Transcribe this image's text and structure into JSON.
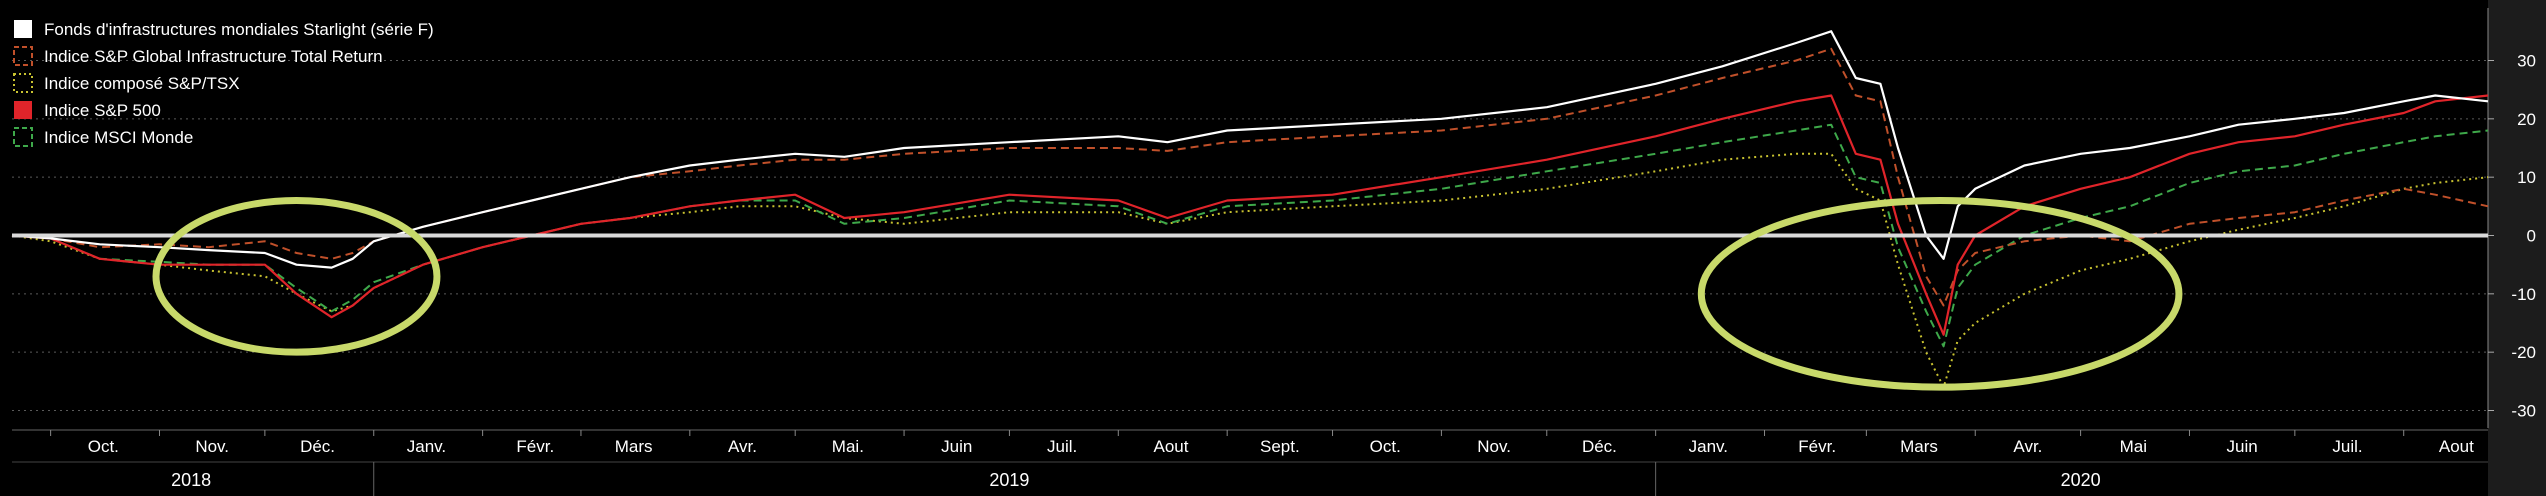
{
  "colors": {
    "background": "#000000",
    "axis_panel": "#1c1c1c",
    "grid": "#5a5a5a",
    "zero_line": "#d9d9d9",
    "highlight_circle": "#c8d96a",
    "text": "#ffffff"
  },
  "chart_data": {
    "type": "line",
    "title": "",
    "xlabel": "",
    "ylabel": "",
    "grid": "horizontal dotted",
    "legend_placement": "top-left",
    "ylim": [
      -33,
      39
    ],
    "yticks": [
      -30,
      -20,
      -10,
      0,
      10,
      20,
      30
    ],
    "x_range": [
      "2018-09-20",
      "2020-08-25"
    ],
    "month_ticks": [
      {
        "label": "Oct.",
        "date": "2018-10-01"
      },
      {
        "label": "Nov.",
        "date": "2018-11-01"
      },
      {
        "label": "Déc.",
        "date": "2018-12-01"
      },
      {
        "label": "Janv.",
        "date": "2019-01-01"
      },
      {
        "label": "Févr.",
        "date": "2019-02-01"
      },
      {
        "label": "Mars",
        "date": "2019-03-01"
      },
      {
        "label": "Avr.",
        "date": "2019-04-01"
      },
      {
        "label": "Mai.",
        "date": "2019-05-01"
      },
      {
        "label": "Juin",
        "date": "2019-06-01"
      },
      {
        "label": "Juil.",
        "date": "2019-07-01"
      },
      {
        "label": "Aout",
        "date": "2019-08-01"
      },
      {
        "label": "Sept.",
        "date": "2019-09-01"
      },
      {
        "label": "Oct.",
        "date": "2019-10-01"
      },
      {
        "label": "Nov.",
        "date": "2019-11-01"
      },
      {
        "label": "Déc.",
        "date": "2019-12-01"
      },
      {
        "label": "Janv.",
        "date": "2020-01-01"
      },
      {
        "label": "Févr.",
        "date": "2020-02-01"
      },
      {
        "label": "Mars",
        "date": "2020-03-01"
      },
      {
        "label": "Avr.",
        "date": "2020-04-01"
      },
      {
        "label": "Mai",
        "date": "2020-05-01"
      },
      {
        "label": "Juin",
        "date": "2020-06-01"
      },
      {
        "label": "Juil.",
        "date": "2020-07-01"
      },
      {
        "label": "Aout",
        "date": "2020-08-01"
      }
    ],
    "year_labels": [
      {
        "label": "2018",
        "date": "2018-11-10"
      },
      {
        "label": "2019",
        "date": "2019-07-01"
      },
      {
        "label": "2020",
        "date": "2020-05-01"
      }
    ],
    "year_separators": [
      "2019-01-01",
      "2020-01-01"
    ],
    "highlight_circles": [
      {
        "center_date": "2018-12-10",
        "center_value": -7,
        "radius_days": 40,
        "radius_value": 13
      },
      {
        "center_date": "2020-03-22",
        "center_value": -10,
        "radius_days": 68,
        "radius_value": 16
      }
    ],
    "series": [
      {
        "name": "Fonds d'infrastructures mondiales Starlight (série F)",
        "color": "#ffffff",
        "style": "solid",
        "points": [
          [
            "2018-09-20",
            0
          ],
          [
            "2018-10-01",
            -0.5
          ],
          [
            "2018-10-15",
            -1.5
          ],
          [
            "2018-11-01",
            -2
          ],
          [
            "2018-11-15",
            -2.5
          ],
          [
            "2018-12-01",
            -3
          ],
          [
            "2018-12-10",
            -5
          ],
          [
            "2018-12-20",
            -5.5
          ],
          [
            "2018-12-26",
            -4
          ],
          [
            "2019-01-01",
            -1
          ],
          [
            "2019-01-15",
            1.5
          ],
          [
            "2019-02-01",
            4
          ],
          [
            "2019-02-15",
            6
          ],
          [
            "2019-03-01",
            8
          ],
          [
            "2019-03-15",
            10
          ],
          [
            "2019-04-01",
            12
          ],
          [
            "2019-04-15",
            13
          ],
          [
            "2019-05-01",
            14
          ],
          [
            "2019-05-15",
            13.5
          ],
          [
            "2019-06-01",
            15
          ],
          [
            "2019-07-01",
            16
          ],
          [
            "2019-08-01",
            17
          ],
          [
            "2019-08-15",
            16
          ],
          [
            "2019-09-01",
            18
          ],
          [
            "2019-10-01",
            19
          ],
          [
            "2019-11-01",
            20
          ],
          [
            "2019-12-01",
            22
          ],
          [
            "2020-01-01",
            26
          ],
          [
            "2020-01-20",
            29
          ],
          [
            "2020-02-10",
            33
          ],
          [
            "2020-02-20",
            35
          ],
          [
            "2020-02-27",
            27
          ],
          [
            "2020-03-05",
            26
          ],
          [
            "2020-03-10",
            15
          ],
          [
            "2020-03-18",
            0
          ],
          [
            "2020-03-23",
            -4
          ],
          [
            "2020-03-27",
            5
          ],
          [
            "2020-04-01",
            8
          ],
          [
            "2020-04-15",
            12
          ],
          [
            "2020-05-01",
            14
          ],
          [
            "2020-05-15",
            15
          ],
          [
            "2020-06-01",
            17
          ],
          [
            "2020-06-15",
            19
          ],
          [
            "2020-07-01",
            20
          ],
          [
            "2020-07-15",
            21
          ],
          [
            "2020-08-01",
            23
          ],
          [
            "2020-08-10",
            24
          ],
          [
            "2020-08-25",
            23
          ]
        ]
      },
      {
        "name": "Indice S&P Global Infrastructure Total Return",
        "color": "#c0502a",
        "style": "dashed",
        "points": [
          [
            "2018-09-20",
            0
          ],
          [
            "2018-10-01",
            -0.5
          ],
          [
            "2018-10-15",
            -2
          ],
          [
            "2018-11-01",
            -1.5
          ],
          [
            "2018-11-15",
            -2
          ],
          [
            "2018-12-01",
            -1
          ],
          [
            "2018-12-10",
            -3
          ],
          [
            "2018-12-20",
            -4
          ],
          [
            "2018-12-26",
            -3
          ],
          [
            "2019-01-01",
            -1
          ],
          [
            "2019-01-15",
            1.5
          ],
          [
            "2019-02-01",
            4
          ],
          [
            "2019-02-15",
            6
          ],
          [
            "2019-03-01",
            8
          ],
          [
            "2019-03-15",
            10
          ],
          [
            "2019-04-01",
            11
          ],
          [
            "2019-04-15",
            12
          ],
          [
            "2019-05-01",
            13
          ],
          [
            "2019-05-15",
            13
          ],
          [
            "2019-06-01",
            14
          ],
          [
            "2019-07-01",
            15
          ],
          [
            "2019-08-01",
            15
          ],
          [
            "2019-08-15",
            14.5
          ],
          [
            "2019-09-01",
            16
          ],
          [
            "2019-10-01",
            17
          ],
          [
            "2019-11-01",
            18
          ],
          [
            "2019-12-01",
            20
          ],
          [
            "2020-01-01",
            24
          ],
          [
            "2020-01-20",
            27
          ],
          [
            "2020-02-10",
            30
          ],
          [
            "2020-02-20",
            32
          ],
          [
            "2020-02-27",
            24
          ],
          [
            "2020-03-05",
            23
          ],
          [
            "2020-03-10",
            10
          ],
          [
            "2020-03-18",
            -7
          ],
          [
            "2020-03-23",
            -12
          ],
          [
            "2020-03-27",
            -6
          ],
          [
            "2020-04-01",
            -3
          ],
          [
            "2020-04-15",
            -1
          ],
          [
            "2020-05-01",
            0
          ],
          [
            "2020-05-15",
            -1
          ],
          [
            "2020-06-01",
            2
          ],
          [
            "2020-06-15",
            3
          ],
          [
            "2020-07-01",
            4
          ],
          [
            "2020-07-15",
            6
          ],
          [
            "2020-08-01",
            8
          ],
          [
            "2020-08-10",
            7
          ],
          [
            "2020-08-25",
            5
          ]
        ]
      },
      {
        "name": "Indice composé S&P/TSX",
        "color": "#c8c230",
        "style": "dotted",
        "points": [
          [
            "2018-09-20",
            0
          ],
          [
            "2018-10-01",
            -1
          ],
          [
            "2018-10-15",
            -4
          ],
          [
            "2018-11-01",
            -5
          ],
          [
            "2018-11-15",
            -6
          ],
          [
            "2018-12-01",
            -7
          ],
          [
            "2018-12-10",
            -10
          ],
          [
            "2018-12-20",
            -13
          ],
          [
            "2018-12-26",
            -12
          ],
          [
            "2019-01-01",
            -9
          ],
          [
            "2019-01-15",
            -5
          ],
          [
            "2019-02-01",
            -2
          ],
          [
            "2019-02-15",
            0
          ],
          [
            "2019-03-01",
            2
          ],
          [
            "2019-03-15",
            3
          ],
          [
            "2019-04-01",
            4
          ],
          [
            "2019-04-15",
            5
          ],
          [
            "2019-05-01",
            5
          ],
          [
            "2019-05-15",
            3
          ],
          [
            "2019-06-01",
            2
          ],
          [
            "2019-07-01",
            4
          ],
          [
            "2019-08-01",
            4
          ],
          [
            "2019-08-15",
            2
          ],
          [
            "2019-09-01",
            4
          ],
          [
            "2019-10-01",
            5
          ],
          [
            "2019-11-01",
            6
          ],
          [
            "2019-12-01",
            8
          ],
          [
            "2020-01-01",
            11
          ],
          [
            "2020-01-20",
            13
          ],
          [
            "2020-02-10",
            14
          ],
          [
            "2020-02-20",
            14
          ],
          [
            "2020-02-27",
            8
          ],
          [
            "2020-03-05",
            6
          ],
          [
            "2020-03-10",
            -5
          ],
          [
            "2020-03-18",
            -20
          ],
          [
            "2020-03-23",
            -26
          ],
          [
            "2020-03-27",
            -18
          ],
          [
            "2020-04-01",
            -15
          ],
          [
            "2020-04-15",
            -10
          ],
          [
            "2020-05-01",
            -6
          ],
          [
            "2020-05-15",
            -4
          ],
          [
            "2020-06-01",
            -1
          ],
          [
            "2020-06-15",
            1
          ],
          [
            "2020-07-01",
            3
          ],
          [
            "2020-07-15",
            5
          ],
          [
            "2020-08-01",
            8
          ],
          [
            "2020-08-10",
            9
          ],
          [
            "2020-08-25",
            10
          ]
        ]
      },
      {
        "name": "Indice S&P 500",
        "color": "#e0242a",
        "style": "solid",
        "points": [
          [
            "2018-09-20",
            0
          ],
          [
            "2018-10-01",
            -0.5
          ],
          [
            "2018-10-15",
            -4
          ],
          [
            "2018-11-01",
            -5
          ],
          [
            "2018-11-15",
            -5
          ],
          [
            "2018-12-01",
            -5
          ],
          [
            "2018-12-10",
            -10
          ],
          [
            "2018-12-20",
            -14
          ],
          [
            "2018-12-26",
            -12
          ],
          [
            "2019-01-01",
            -9
          ],
          [
            "2019-01-15",
            -5
          ],
          [
            "2019-02-01",
            -2
          ],
          [
            "2019-02-15",
            0
          ],
          [
            "2019-03-01",
            2
          ],
          [
            "2019-03-15",
            3
          ],
          [
            "2019-04-01",
            5
          ],
          [
            "2019-04-15",
            6
          ],
          [
            "2019-05-01",
            7
          ],
          [
            "2019-05-15",
            3
          ],
          [
            "2019-06-01",
            4
          ],
          [
            "2019-07-01",
            7
          ],
          [
            "2019-08-01",
            6
          ],
          [
            "2019-08-15",
            3
          ],
          [
            "2019-09-01",
            6
          ],
          [
            "2019-10-01",
            7
          ],
          [
            "2019-11-01",
            10
          ],
          [
            "2019-12-01",
            13
          ],
          [
            "2020-01-01",
            17
          ],
          [
            "2020-01-20",
            20
          ],
          [
            "2020-02-10",
            23
          ],
          [
            "2020-02-20",
            24
          ],
          [
            "2020-02-27",
            14
          ],
          [
            "2020-03-05",
            13
          ],
          [
            "2020-03-10",
            2
          ],
          [
            "2020-03-18",
            -10
          ],
          [
            "2020-03-23",
            -17
          ],
          [
            "2020-03-27",
            -5
          ],
          [
            "2020-04-01",
            0
          ],
          [
            "2020-04-15",
            5
          ],
          [
            "2020-05-01",
            8
          ],
          [
            "2020-05-15",
            10
          ],
          [
            "2020-06-01",
            14
          ],
          [
            "2020-06-15",
            16
          ],
          [
            "2020-07-01",
            17
          ],
          [
            "2020-07-15",
            19
          ],
          [
            "2020-08-01",
            21
          ],
          [
            "2020-08-10",
            23
          ],
          [
            "2020-08-25",
            24
          ]
        ]
      },
      {
        "name": "Indice MSCI Monde",
        "color": "#3ea84a",
        "style": "dashed",
        "points": [
          [
            "2018-09-20",
            0
          ],
          [
            "2018-10-01",
            -0.5
          ],
          [
            "2018-10-15",
            -4
          ],
          [
            "2018-11-01",
            -4.5
          ],
          [
            "2018-11-15",
            -5
          ],
          [
            "2018-12-01",
            -5
          ],
          [
            "2018-12-10",
            -9
          ],
          [
            "2018-12-20",
            -13
          ],
          [
            "2018-12-26",
            -11
          ],
          [
            "2019-01-01",
            -8
          ],
          [
            "2019-01-15",
            -5
          ],
          [
            "2019-02-01",
            -2
          ],
          [
            "2019-02-15",
            0
          ],
          [
            "2019-03-01",
            2
          ],
          [
            "2019-03-15",
            3
          ],
          [
            "2019-04-01",
            5
          ],
          [
            "2019-04-15",
            6
          ],
          [
            "2019-05-01",
            6
          ],
          [
            "2019-05-15",
            2
          ],
          [
            "2019-06-01",
            3
          ],
          [
            "2019-07-01",
            6
          ],
          [
            "2019-08-01",
            5
          ],
          [
            "2019-08-15",
            2
          ],
          [
            "2019-09-01",
            5
          ],
          [
            "2019-10-01",
            6
          ],
          [
            "2019-11-01",
            8
          ],
          [
            "2019-12-01",
            11
          ],
          [
            "2020-01-01",
            14
          ],
          [
            "2020-01-20",
            16
          ],
          [
            "2020-02-10",
            18
          ],
          [
            "2020-02-20",
            19
          ],
          [
            "2020-02-27",
            10
          ],
          [
            "2020-03-05",
            9
          ],
          [
            "2020-03-10",
            -2
          ],
          [
            "2020-03-18",
            -13
          ],
          [
            "2020-03-23",
            -19
          ],
          [
            "2020-03-27",
            -9
          ],
          [
            "2020-04-01",
            -5
          ],
          [
            "2020-04-15",
            0
          ],
          [
            "2020-05-01",
            3
          ],
          [
            "2020-05-15",
            5
          ],
          [
            "2020-06-01",
            9
          ],
          [
            "2020-06-15",
            11
          ],
          [
            "2020-07-01",
            12
          ],
          [
            "2020-07-15",
            14
          ],
          [
            "2020-08-01",
            16
          ],
          [
            "2020-08-10",
            17
          ],
          [
            "2020-08-25",
            18
          ]
        ]
      }
    ]
  }
}
